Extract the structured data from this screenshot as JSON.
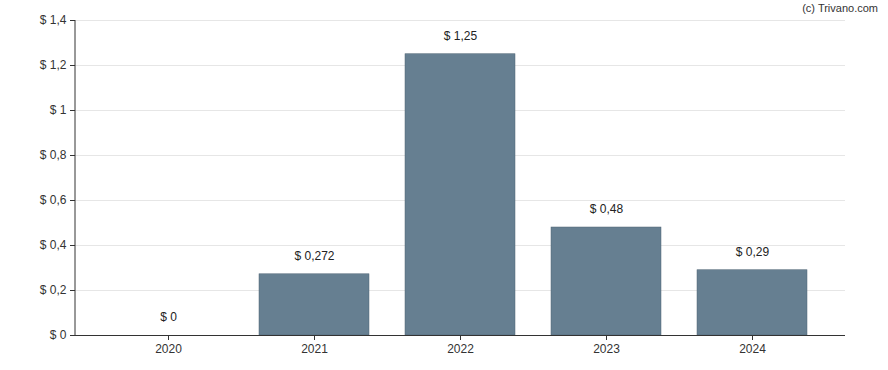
{
  "chart_data": {
    "type": "bar",
    "annotations": [
      "(c) Trivano.com"
    ],
    "categories": [
      "2020",
      "2021",
      "2022",
      "2023",
      "2024"
    ],
    "values": [
      0,
      0.272,
      1.25,
      0.48,
      0.29
    ],
    "value_labels": [
      "$ 0",
      "$ 0,272",
      "$ 1,25",
      "$ 0,48",
      "$ 0,29"
    ],
    "data_labels": true,
    "color": "#667f91",
    "ylim": [
      0,
      1.4
    ],
    "yticks": [
      {
        "value": 0,
        "label": "$ 0"
      },
      {
        "value": 0.2,
        "label": "$ 0,2"
      },
      {
        "value": 0.4,
        "label": "$ 0,4"
      },
      {
        "value": 0.6,
        "label": "$ 0,6"
      },
      {
        "value": 0.8,
        "label": "$ 0,8"
      },
      {
        "value": 1,
        "label": "$ 1"
      },
      {
        "value": 1.2,
        "label": "$ 1,2"
      },
      {
        "value": 1.4,
        "label": "$ 1,4"
      }
    ],
    "grid": true
  }
}
